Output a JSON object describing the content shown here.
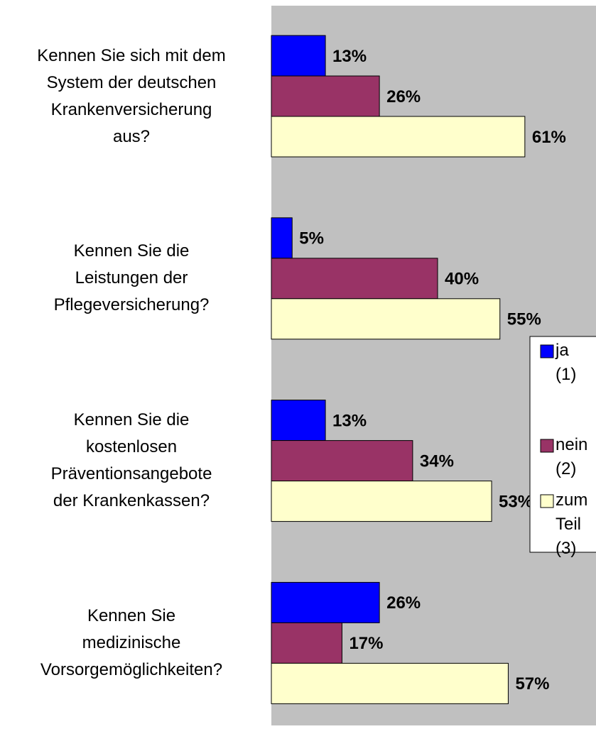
{
  "chart_data": {
    "type": "bar",
    "orientation": "horizontal",
    "categories": [
      "Kennen Sie sich mit dem\nSystem der deutschen\nKrankenversicherung\naus?",
      "Kennen Sie die\nLeistungen der\nPflegeversicherung?",
      "Kennen Sie die\nkostenlosen\nPräventionsangebote\nder Krankenkassen?",
      "Kennen Sie\nmedizinische\nVorsorgemöglichkeiten?"
    ],
    "series": [
      {
        "name": "ja (1)",
        "color": "#0000ff",
        "values": [
          13,
          5,
          13,
          26
        ],
        "value_labels": [
          "13%",
          "5%",
          "13%",
          "26%"
        ]
      },
      {
        "name": "nein (2)",
        "color": "#993366",
        "values": [
          26,
          40,
          34,
          17
        ],
        "value_labels": [
          "26%",
          "40%",
          "34%",
          "17%"
        ]
      },
      {
        "name": "zum Teil (3)",
        "color": "#ffffcc",
        "values": [
          61,
          55,
          53,
          57
        ],
        "value_labels": [
          "61%",
          "55%",
          "53%",
          "57%"
        ]
      }
    ],
    "xlim": [
      0,
      100
    ],
    "legend": "right"
  }
}
